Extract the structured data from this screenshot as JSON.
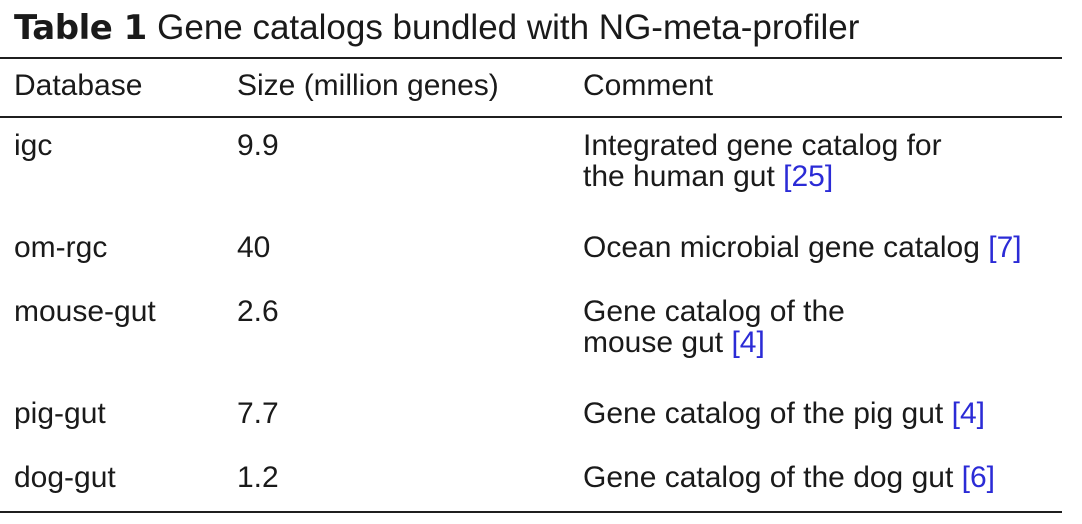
{
  "caption": {
    "label": "Table 1",
    "text": "Gene catalogs bundled with NG-meta-profiler"
  },
  "table": {
    "headers": [
      "Database",
      "Size (million genes)",
      "Comment"
    ],
    "rows": [
      {
        "database": "igc",
        "size": "9.9",
        "comment_line1": "Integrated gene catalog for",
        "comment_line2": "the human gut",
        "ref": "25"
      },
      {
        "database": "om-rgc",
        "size": "40",
        "comment_line1": "Ocean microbial gene catalog",
        "comment_line2": "",
        "ref": "7"
      },
      {
        "database": "mouse-gut",
        "size": "2.6",
        "comment_line1": "Gene catalog of the",
        "comment_line2": "mouse gut",
        "ref": "4"
      },
      {
        "database": "pig-gut",
        "size": "7.7",
        "comment_line1": "Gene catalog of the pig gut",
        "comment_line2": "",
        "ref": "4"
      },
      {
        "database": "dog-gut",
        "size": "1.2",
        "comment_line1": "Gene catalog of the dog gut",
        "comment_line2": "",
        "ref": "6"
      }
    ]
  },
  "colors": {
    "text": "#1a1a1a",
    "reference_link": "#2b2bd6",
    "rule": "#1f1f1f"
  }
}
